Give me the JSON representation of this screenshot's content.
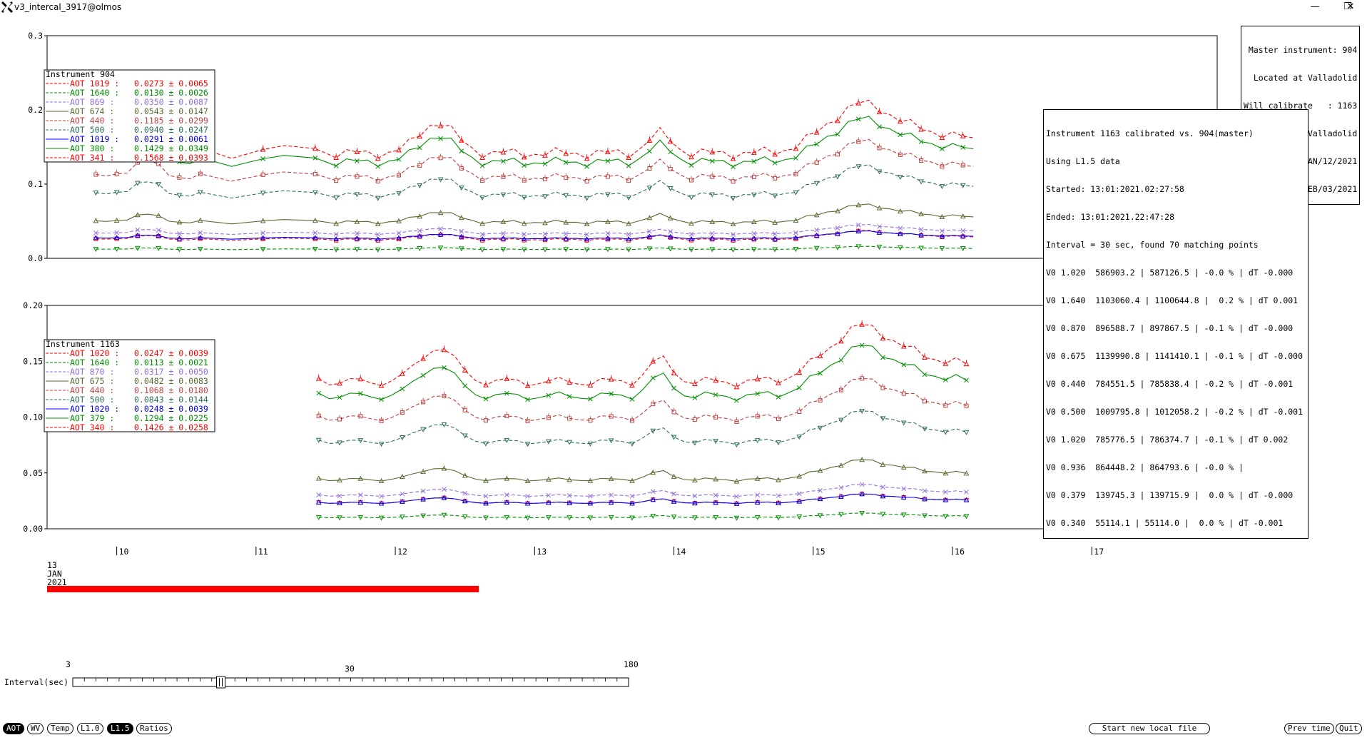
{
  "window": {
    "title": "v3_intercal_3917@olmos",
    "controls": [
      "minimize-icon",
      "maximize-icon",
      "close-icon"
    ]
  },
  "master_box": {
    "lines": [
      "Master instrument: 904",
      "Located at Valladolid",
      "Will calibrate   : 1163",
      "Located at Valladolid",
      "From JAN/12/2021",
      "To FEB/03/2021"
    ]
  },
  "calib_box": {
    "lines": [
      "Instrument 1163 calibrated vs. 904(master)",
      "Using L1.5 data",
      "Started: 13:01:2021.02:27:58",
      "Ended: 13:01:2021.22:47:28",
      "Interval = 30 sec, found 70 matching points",
      "V0 1.020  586903.2 | 587126.5 | -0.0 % | dT -0.000",
      "V0 1.640  1103060.4 | 1100644.8 |  0.2 % | dT 0.001",
      "V0 0.870  896588.7 | 897867.5 | -0.1 % | dT -0.000",
      "V0 0.675  1139990.8 | 1141410.1 | -0.1 % | dT -0.000",
      "V0 0.440  784551.5 | 785838.4 | -0.2 % | dT -0.001",
      "V0 0.500  1009795.8 | 1012058.2 | -0.2 % | dT -0.001",
      "V0 1.020  785776.5 | 786374.7 | -0.1 % | dT 0.002",
      "V0 0.936  864448.2 | 864793.6 | -0.0 % |",
      "V0 0.379  139745.3 | 139715.9 |  0.0 % | dT -0.000",
      "V0 0.340  55114.1 | 55114.0 |  0.0 % | dT -0.001"
    ]
  },
  "chart_data": [
    {
      "type": "line",
      "title": "Instrument 904",
      "ylim": [
        0,
        0.3
      ],
      "yticks": [
        "0.0",
        "0.1",
        "0.2",
        "0.3"
      ],
      "x_range": [
        9.5,
        17.9
      ],
      "series": [
        {
          "name": "AOT 1019",
          "stat": "0.0273 ± 0.0065",
          "color": "#ff0000",
          "marker": "square",
          "style": "dashed",
          "level": 0.028,
          "amp": 0.006
        },
        {
          "name": "AOT 1640",
          "stat": "0.0130 ± 0.0026",
          "color": "#009000",
          "marker": "tri-down",
          "style": "dashed",
          "level": 0.013,
          "amp": 0.002
        },
        {
          "name": "AOT 869",
          "stat": "0.0350 ± 0.0087",
          "color": "#9370db",
          "marker": "x",
          "style": "dashed",
          "level": 0.036,
          "amp": 0.006
        },
        {
          "name": "AOT 674",
          "stat": "0.0543 ± 0.0147",
          "color": "#556b2f",
          "marker": "tri-up",
          "style": "solid",
          "level": 0.054,
          "amp": 0.012
        },
        {
          "name": "AOT 440",
          "stat": "0.1185 ± 0.0299",
          "color": "#c04040",
          "marker": "square",
          "style": "dashed",
          "level": 0.12,
          "amp": 0.025
        },
        {
          "name": "AOT 500",
          "stat": "0.0940 ± 0.0247",
          "color": "#2f6f5f",
          "marker": "tri-down",
          "style": "dashed",
          "level": 0.094,
          "amp": 0.02
        },
        {
          "name": "AOT 1019",
          "stat": "0.0291 ± 0.0061",
          "color": "#0000ff",
          "marker": "tri-up",
          "style": "solid",
          "level": 0.029,
          "amp": 0.005
        },
        {
          "name": "AOT 380",
          "stat": "0.1429 ± 0.0349",
          "color": "#009000",
          "marker": "x",
          "style": "solid",
          "level": 0.143,
          "amp": 0.03
        },
        {
          "name": "AOT 341",
          "stat": "0.1568 ± 0.0393",
          "color": "#ff0000",
          "marker": "tri-up",
          "style": "dashed",
          "level": 0.157,
          "amp": 0.035
        }
      ]
    },
    {
      "type": "line",
      "title": "Instrument 1163",
      "ylim": [
        0,
        0.2
      ],
      "yticks": [
        "0.00",
        "0.05",
        "0.10",
        "0.15",
        "0.20"
      ],
      "x_range": [
        9.5,
        17.9
      ],
      "series": [
        {
          "name": "AOT 1020",
          "stat": "0.0247 ± 0.0039",
          "color": "#ff0000",
          "marker": "square",
          "style": "dashed",
          "level": 0.025,
          "amp": 0.004
        },
        {
          "name": "AOT 1640",
          "stat": "0.0113 ± 0.0021",
          "color": "#009000",
          "marker": "tri-down",
          "style": "dashed",
          "level": 0.011,
          "amp": 0.002
        },
        {
          "name": "AOT 870",
          "stat": "0.0317 ± 0.0050",
          "color": "#9370db",
          "marker": "x",
          "style": "dashed",
          "level": 0.032,
          "amp": 0.005
        },
        {
          "name": "AOT 675",
          "stat": "0.0482 ± 0.0083",
          "color": "#556b2f",
          "marker": "tri-up",
          "style": "solid",
          "level": 0.048,
          "amp": 0.009
        },
        {
          "name": "AOT 440",
          "stat": "0.1068 ± 0.0180",
          "color": "#c04040",
          "marker": "square",
          "style": "dashed",
          "level": 0.107,
          "amp": 0.018
        },
        {
          "name": "AOT 500",
          "stat": "0.0843 ± 0.0144",
          "color": "#2f6f5f",
          "marker": "tri-down",
          "style": "dashed",
          "level": 0.084,
          "amp": 0.014
        },
        {
          "name": "AOT 1020",
          "stat": "0.0248 ± 0.0039",
          "color": "#0000ff",
          "marker": "tri-up",
          "style": "solid",
          "level": 0.025,
          "amp": 0.004
        },
        {
          "name": "AOT 379",
          "stat": "0.1294 ± 0.0225",
          "color": "#009000",
          "marker": "x",
          "style": "solid",
          "level": 0.129,
          "amp": 0.023
        },
        {
          "name": "AOT 340",
          "stat": "0.1426 ± 0.0258",
          "color": "#ff0000",
          "marker": "tri-up",
          "style": "dashed",
          "level": 0.143,
          "amp": 0.026
        }
      ]
    }
  ],
  "xaxis": {
    "ticks": [
      10,
      11,
      12,
      13,
      14,
      15,
      16,
      17
    ],
    "date_day": "13",
    "date_month": "JAN",
    "date_year": "2021",
    "progress_fraction": 0.345
  },
  "slider": {
    "label": "Interval(sec)",
    "min_label": "3",
    "mid_label": "30",
    "max_label": "180",
    "value": 30
  },
  "buttons": {
    "aot": "AOT",
    "wv": "WV",
    "temp": "Temp",
    "l10": "L1.0",
    "l15": "L1.5",
    "ratios": "Ratios",
    "start_local": "Start new local file",
    "prev_time": "Prev time",
    "quit": "Quit"
  }
}
